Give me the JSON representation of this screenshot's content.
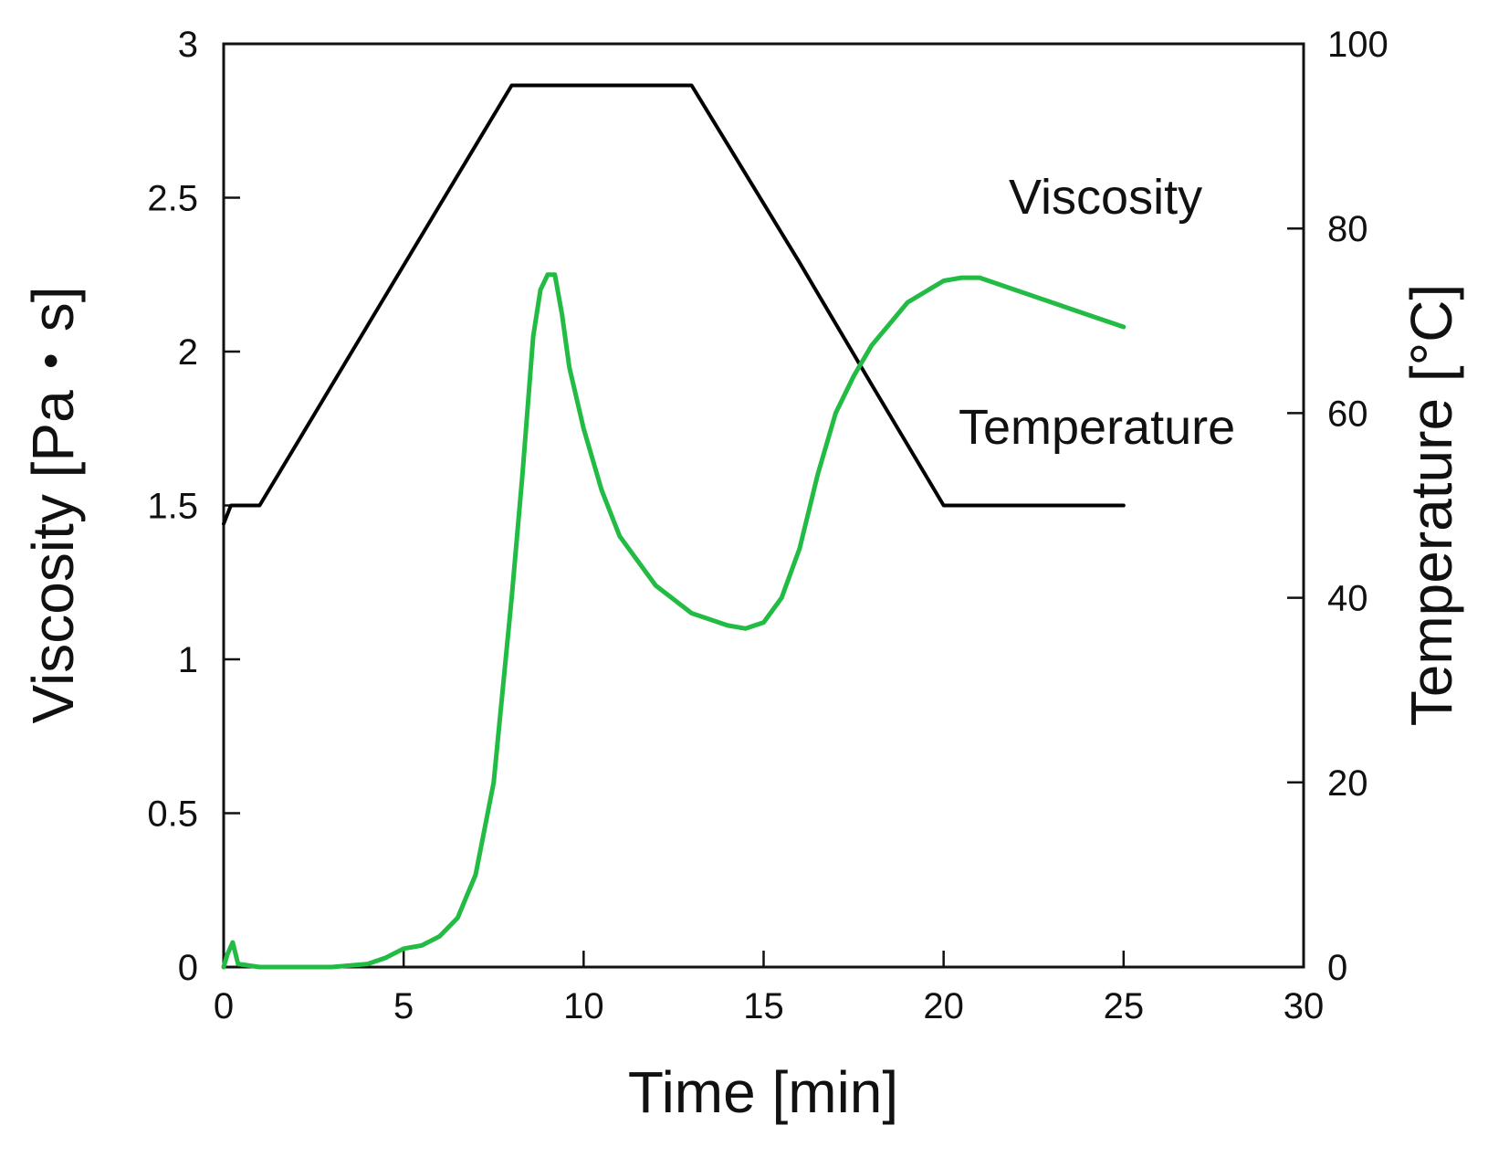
{
  "chart_data": {
    "type": "line",
    "title": "",
    "xlabel": "Time [min]",
    "ylabel_left": "Viscosity [Pa・s]",
    "ylabel_right": "Temperature [°C]",
    "xlim": [
      0,
      30
    ],
    "ylim_left": [
      0,
      3
    ],
    "ylim_right": [
      0,
      100
    ],
    "x_ticks": [
      "0",
      "5",
      "10",
      "15",
      "20",
      "25",
      "30"
    ],
    "y_left_ticks": [
      "0",
      "0.5",
      "1",
      "1.5",
      "2",
      "2.5",
      "3"
    ],
    "y_right_ticks": [
      "0",
      "20",
      "40",
      "60",
      "80",
      "100"
    ],
    "grid": false,
    "annotations": [
      {
        "text": "Viscosity",
        "target_series": "viscosity"
      },
      {
        "text": "Temperature",
        "target_series": "temperature"
      }
    ],
    "series": [
      {
        "name": "Temperature",
        "axis": "right",
        "color": "#000000",
        "x": [
          0,
          0.2,
          0.5,
          1.0,
          2.0,
          4.0,
          6.0,
          8.0,
          10.0,
          12.0,
          13.0,
          14.0,
          16.0,
          18.0,
          20.0,
          22.0,
          25.0
        ],
        "y": [
          48,
          50,
          50,
          50,
          56.5,
          69.5,
          82.5,
          95.5,
          95.5,
          95.5,
          95.5,
          89.1,
          76.3,
          63.1,
          50.0,
          50.0,
          50.0
        ]
      },
      {
        "name": "Viscosity",
        "axis": "left",
        "color": "#22bb44",
        "x": [
          0,
          0.1,
          0.25,
          0.4,
          1.0,
          2.0,
          3.0,
          4.0,
          4.5,
          5.0,
          5.5,
          6.0,
          6.5,
          7.0,
          7.5,
          8.0,
          8.3,
          8.6,
          8.8,
          9.0,
          9.2,
          9.4,
          9.6,
          10.0,
          10.5,
          11.0,
          12.0,
          13.0,
          14.0,
          14.5,
          15.0,
          15.5,
          16.0,
          16.5,
          17.0,
          17.5,
          18.0,
          19.0,
          20.0,
          20.5,
          21.0,
          22.0,
          23.0,
          24.0,
          25.0
        ],
        "y": [
          0,
          0.04,
          0.08,
          0.01,
          0.0,
          0.0,
          0.0,
          0.01,
          0.03,
          0.06,
          0.07,
          0.1,
          0.16,
          0.3,
          0.6,
          1.2,
          1.6,
          2.05,
          2.2,
          2.25,
          2.25,
          2.12,
          1.95,
          1.75,
          1.55,
          1.4,
          1.24,
          1.15,
          1.11,
          1.1,
          1.12,
          1.2,
          1.36,
          1.6,
          1.8,
          1.92,
          2.02,
          2.16,
          2.23,
          2.24,
          2.24,
          2.2,
          2.16,
          2.12,
          2.08
        ]
      }
    ]
  }
}
